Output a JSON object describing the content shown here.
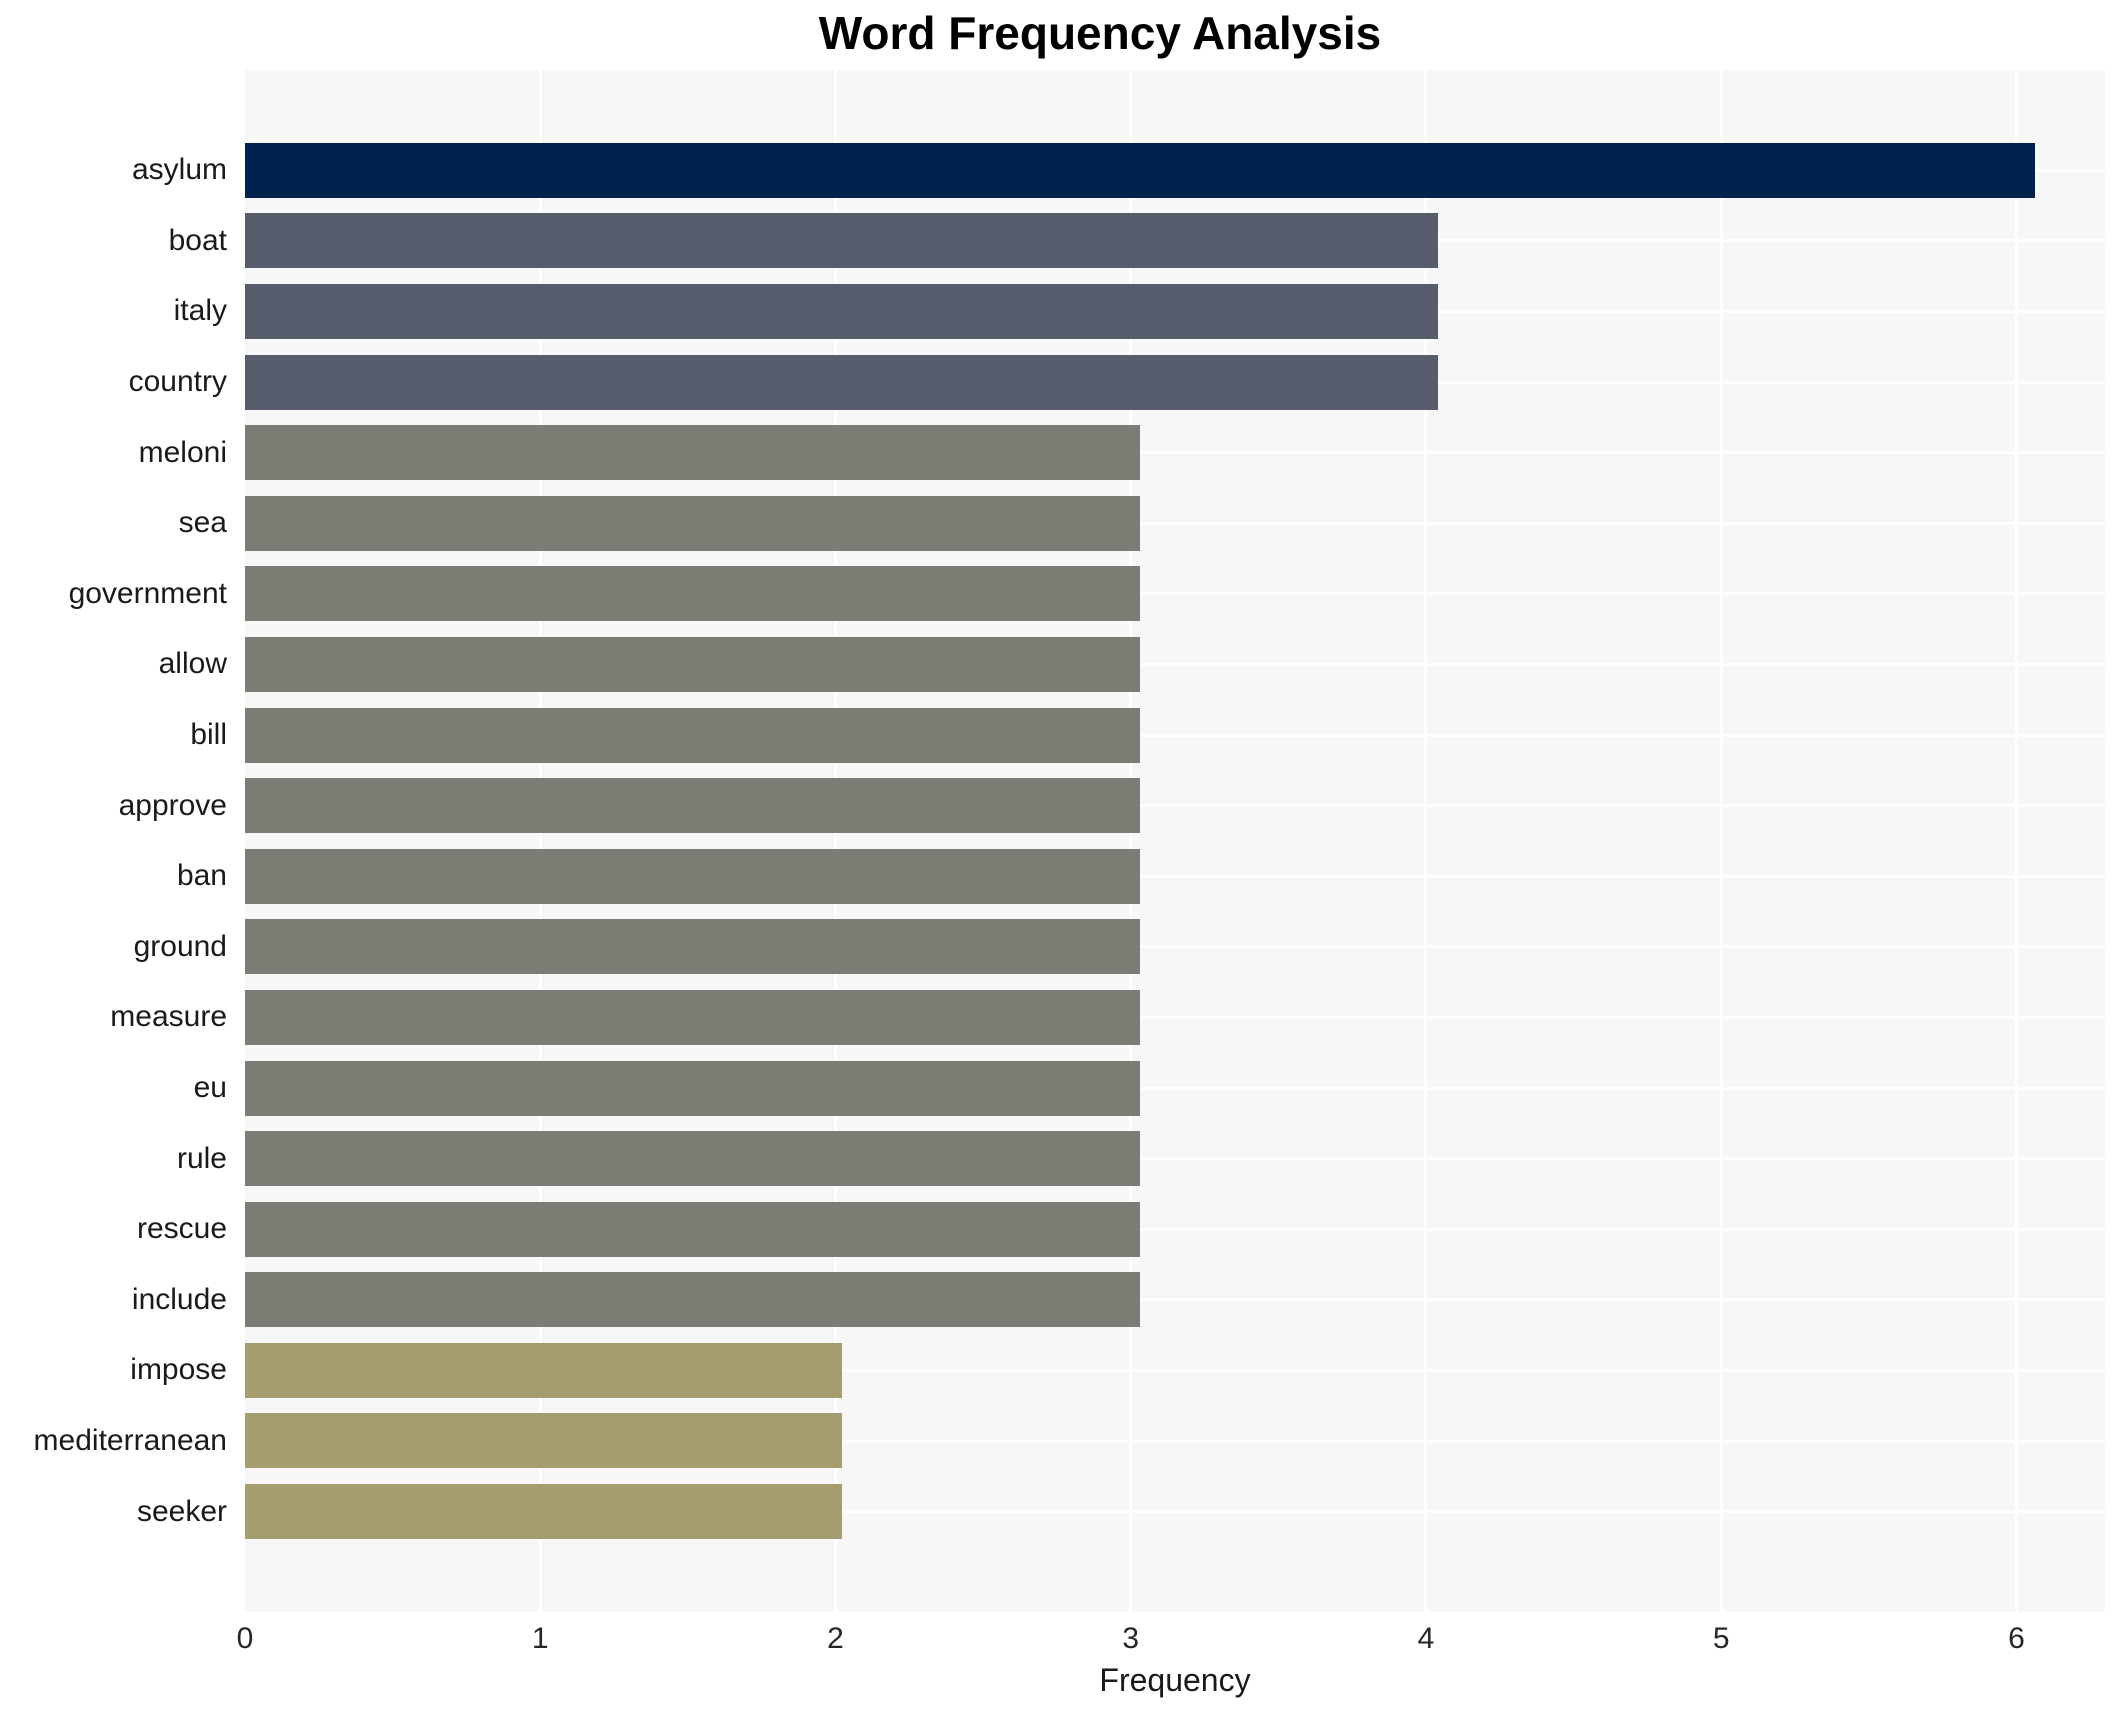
{
  "chart_data": {
    "type": "bar",
    "orientation": "horizontal",
    "title": "Word Frequency Analysis",
    "xlabel": "Frequency",
    "ylabel": "",
    "categories": [
      "asylum",
      "boat",
      "italy",
      "country",
      "meloni",
      "sea",
      "government",
      "allow",
      "bill",
      "approve",
      "ban",
      "ground",
      "measure",
      "eu",
      "rule",
      "rescue",
      "include",
      "impose",
      "mediterranean",
      "seeker"
    ],
    "values": [
      6,
      4,
      4,
      4,
      3,
      3,
      3,
      3,
      3,
      3,
      3,
      3,
      3,
      3,
      3,
      3,
      3,
      2,
      2,
      2
    ],
    "xlim": [
      0,
      6.3
    ],
    "xticks": [
      0,
      1,
      2,
      3,
      4,
      5,
      6
    ],
    "grid": true,
    "legend_position": "none",
    "colors": {
      "value_6": "#00224e",
      "value_4": "#575d6d",
      "value_3": "#7c7b74",
      "value_2": "#a59c70",
      "plot_background": "#f7f7f7",
      "grid_line": "#ffffff",
      "text": "#1a1a1a"
    }
  }
}
